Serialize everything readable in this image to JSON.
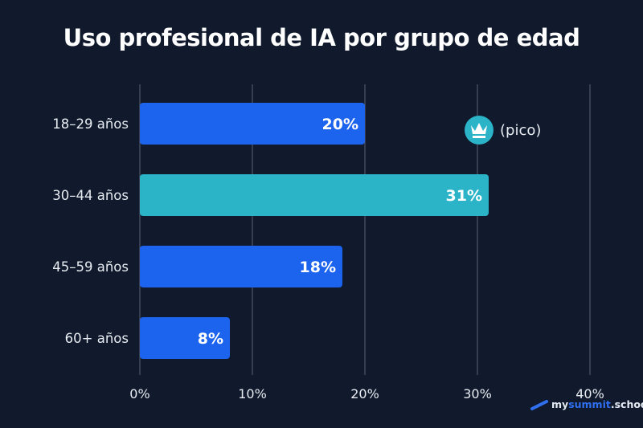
{
  "chart_data": {
    "type": "bar",
    "orientation": "horizontal",
    "title": "Uso profesional de IA por grupo de edad",
    "categories": [
      "18–29 años",
      "30–44 años",
      "45–59 años",
      "60+ años"
    ],
    "values": [
      20,
      31,
      18,
      8
    ],
    "data_labels": [
      "20%",
      "31%",
      "18%",
      "8%"
    ],
    "xlim": [
      0,
      40
    ],
    "x_ticks": [
      "0%",
      "10%",
      "20%",
      "30%",
      "40%"
    ],
    "x_tick_values": [
      0,
      10,
      20,
      30,
      40
    ],
    "grid": "vertical",
    "highlight_index": 1,
    "annotation": {
      "text": "(pico)",
      "icon": "crown-icon",
      "category_index": 1
    },
    "colors": {
      "bar": "#1c63ee",
      "highlight": "#2bb3c8",
      "background": "#101a2c",
      "grid": "#5a6070",
      "text": "#ffffff"
    }
  },
  "logo": {
    "prefix": "my",
    "highlight": "summit",
    "suffix": ".school"
  }
}
